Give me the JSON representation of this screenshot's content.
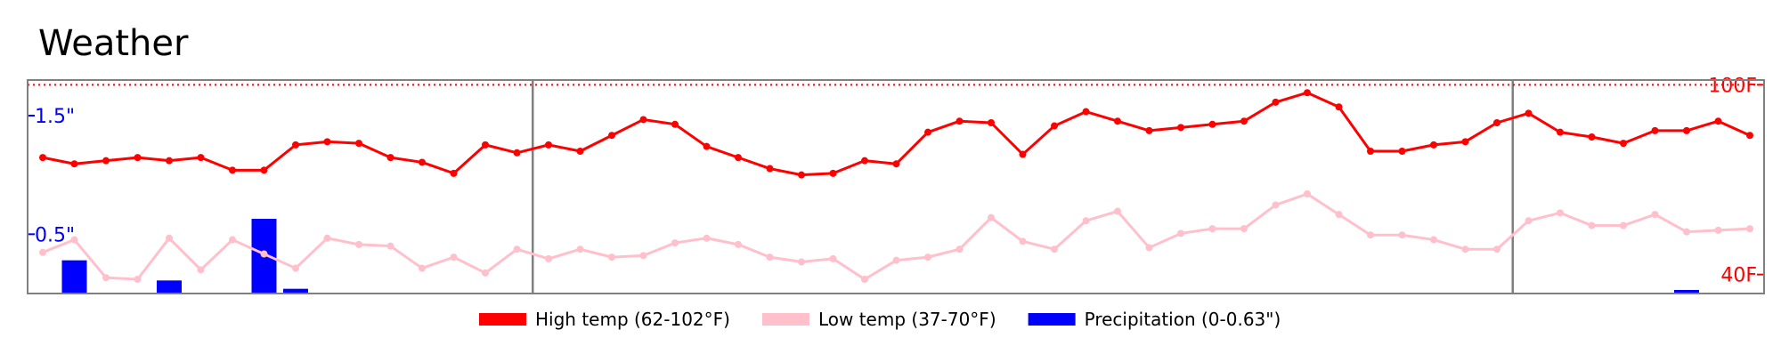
{
  "chart_data": {
    "type": "line",
    "title": "Weather",
    "series": [
      {
        "name": "High temp (62-102°F)",
        "color": "#ff0000",
        "values": [
          77,
          75,
          76,
          77,
          76,
          77,
          73,
          73,
          81,
          82,
          81.5,
          77,
          75.5,
          72,
          81,
          78.5,
          81,
          79,
          84,
          89,
          87.5,
          80.5,
          77,
          73.5,
          71.5,
          72,
          76,
          75,
          85,
          88.5,
          88,
          78,
          87,
          91.5,
          88.5,
          85.5,
          86.5,
          87.5,
          88.5,
          94.5,
          97.5,
          93,
          79,
          79,
          81,
          82,
          88,
          91,
          85,
          83.5,
          81.5,
          85.5,
          85.5,
          88.5,
          84
        ]
      },
      {
        "name": "Low temp (37-70°F)",
        "color": "#ffc0cb",
        "values": [
          47,
          51,
          39,
          38.5,
          51.5,
          41.5,
          51,
          46.5,
          42,
          51.5,
          49.5,
          49,
          42,
          45.5,
          40.5,
          48,
          45,
          48,
          45.5,
          46,
          50,
          51.5,
          49.5,
          45.5,
          44,
          45,
          38.5,
          44.5,
          45.5,
          48,
          58,
          50.5,
          48,
          57,
          60,
          48.5,
          53,
          54.5,
          54.5,
          62,
          65.5,
          59,
          52.5,
          52.5,
          51,
          48,
          48,
          57,
          59.5,
          55.5,
          55.5,
          59,
          53.5,
          54,
          54.5
        ]
      },
      {
        "name": "Precipitation (0-0.63\")",
        "color": "#0000ff",
        "values": [
          0,
          0.28,
          0,
          0,
          0.11,
          0,
          0,
          0.63,
          0.04,
          0,
          0,
          0,
          0,
          0,
          0,
          0,
          0,
          0,
          0,
          0,
          0,
          0,
          0,
          0,
          0,
          0,
          0,
          0,
          0,
          0,
          0,
          0,
          0,
          0,
          0,
          0,
          0,
          0,
          0,
          0,
          0,
          0,
          0,
          0,
          0,
          0,
          0,
          0,
          0,
          0,
          0,
          0,
          0.03,
          0,
          0
        ]
      }
    ],
    "temp_reference": {
      "label": "100F",
      "value": 100,
      "color": "#ff0000",
      "style": "dotted"
    },
    "temp_axis_labels": [
      {
        "label": "100F",
        "value": 100
      },
      {
        "label": "40F",
        "value": 40
      }
    ],
    "precip_axis_labels": [
      {
        "label": "1.5\"",
        "value": 1.5
      },
      {
        "label": "0.5\"",
        "value": 0.5
      }
    ],
    "temp_ylim": [
      34,
      101.5
    ],
    "precip_ylim": [
      0,
      1.8
    ],
    "vertical_dividers_at_index": [
      15.5,
      46.5
    ],
    "grid": false,
    "legend_position": "bottom-center"
  }
}
